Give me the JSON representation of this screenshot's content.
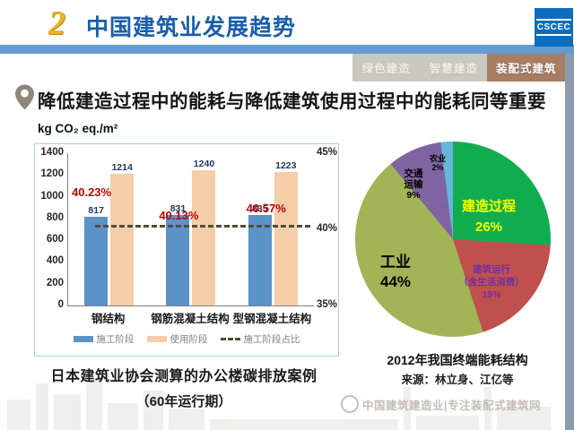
{
  "header": {
    "section_number": "2",
    "title": "中国建筑业发展趋势",
    "logo_text": "CSCEC"
  },
  "tabs": [
    {
      "label": "绿色建造",
      "active": false
    },
    {
      "label": "智慧建造",
      "active": false
    },
    {
      "label": "装配式建筑",
      "active": true
    }
  ],
  "heading": "降低建造过程中的能耗与降低建筑使用过程中的能耗同等重要",
  "chart_data": [
    {
      "type": "bar",
      "unit_label": "kg CO₂ eq./m²",
      "categories": [
        "钢结构",
        "钢筋混凝土结构",
        "型钢混凝土结构"
      ],
      "series": [
        {
          "name": "施工阶段",
          "color": "#5B92C8",
          "values": [
            817,
            831,
            835
          ]
        },
        {
          "name": "使用阶段",
          "color": "#F6CDA9",
          "values": [
            1214,
            1240,
            1223
          ]
        }
      ],
      "line_series": {
        "name": "施工阶段占比",
        "style": "dashed",
        "color": "#4F4D38",
        "values_pct": [
          40.23,
          40.13,
          40.57
        ]
      },
      "pct_labels": [
        "40.23%",
        "40.13%",
        "40.57%"
      ],
      "ylim": [
        0,
        1400
      ],
      "yticks": [
        0,
        200,
        400,
        600,
        800,
        1000,
        1200,
        1400
      ],
      "y2lim": [
        35,
        45
      ],
      "y2ticks": [
        45,
        40,
        35
      ],
      "grid": false,
      "legend_position": "bottom",
      "caption_line1": "日本建筑业协会测算的办公楼碳排放案例",
      "caption_line2": "（60年运行期）"
    },
    {
      "type": "pie",
      "title": "2012年我国终端能耗结构",
      "source": "来源：林立身、江亿等",
      "slices": [
        {
          "label": "建造过程",
          "value": 26,
          "color": "#10AD4F",
          "text_color": "#FFFF00",
          "display": [
            "建造过程",
            "26%"
          ]
        },
        {
          "label": "建筑运行（含生活消费）",
          "value": 19,
          "color": "#C0504D",
          "text_color": "#7030A0",
          "display": [
            "建筑运行",
            "（含生活消费）",
            "19%"
          ]
        },
        {
          "label": "工业",
          "value": 44,
          "color": "#A3B456",
          "text_color": "#000000",
          "display": [
            "工业",
            "44%"
          ]
        },
        {
          "label": "交通运输",
          "value": 9,
          "color": "#8064A2",
          "text_color": "#000000",
          "display": [
            "交通",
            "运输",
            "9%"
          ]
        },
        {
          "label": "农业",
          "value": 2,
          "color": "#66B6DA",
          "text_color": "#000000",
          "display": [
            "农业",
            "2%"
          ]
        }
      ]
    }
  ],
  "watermark_text": "中国建筑建造业|专注装配式建筑网",
  "colors": {
    "header_title": "#1B5FAA",
    "band": "#639BD2",
    "active_tab": "#A77D63",
    "pct_label": "#C00000"
  }
}
